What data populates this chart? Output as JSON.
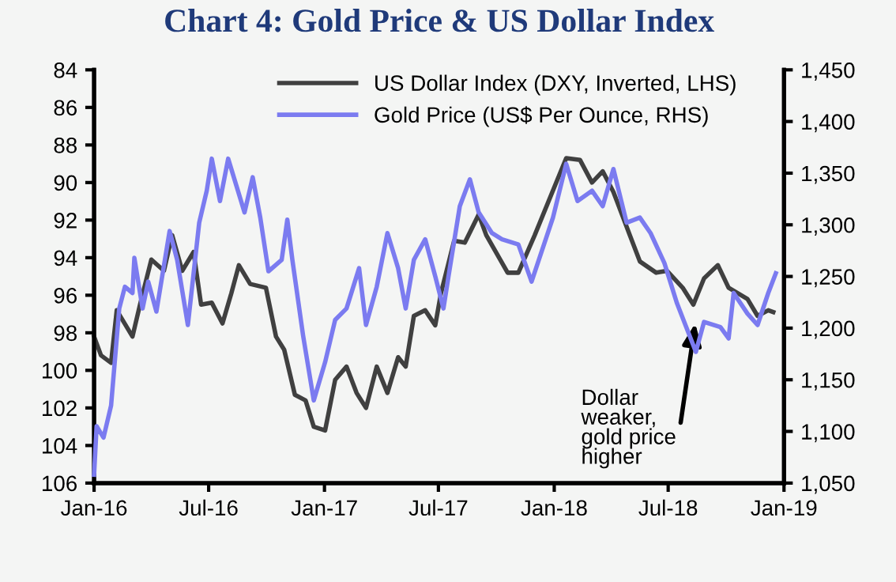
{
  "chart_data": {
    "type": "line",
    "title": "Chart 4: Gold Price & US Dollar Index",
    "xlim": [
      "2016-01-01",
      "2019-01-01"
    ],
    "xticks": [
      {
        "value": "2016-01-01",
        "label": "Jan-16"
      },
      {
        "value": "2016-07-01",
        "label": "Jul-16"
      },
      {
        "value": "2017-01-01",
        "label": "Jan-17"
      },
      {
        "value": "2017-07-01",
        "label": "Jul-17"
      },
      {
        "value": "2018-01-01",
        "label": "Jan-18"
      },
      {
        "value": "2018-07-01",
        "label": "Jul-18"
      },
      {
        "value": "2019-01-01",
        "label": "Jan-19"
      }
    ],
    "ylim": [
      106,
      84
    ],
    "yticks": [
      84,
      86,
      88,
      90,
      92,
      94,
      96,
      98,
      100,
      102,
      104,
      106
    ],
    "y2lim": [
      1050,
      1450
    ],
    "y2ticks": [
      {
        "value": 1050,
        "label": "1,050"
      },
      {
        "value": 1100,
        "label": "1,100"
      },
      {
        "value": 1150,
        "label": "1,150"
      },
      {
        "value": 1200,
        "label": "1,200"
      },
      {
        "value": 1250,
        "label": "1,250"
      },
      {
        "value": 1300,
        "label": "1,300"
      },
      {
        "value": 1350,
        "label": "1,350"
      },
      {
        "value": 1400,
        "label": "1,400"
      },
      {
        "value": 1450,
        "label": "1,450"
      }
    ],
    "grid": false,
    "legend": "top",
    "line_style": "solid",
    "annotations": [
      {
        "text": "Dollar\nweaker,\ngold price\nhigher",
        "x": "2018-08-13",
        "y": 97.5
      }
    ],
    "series": [
      {
        "name": "US Dollar Index (DXY, Inverted, LHS)",
        "color": "#404040",
        "x": [
          "2016-01-01",
          "2016-01-12",
          "2016-01-28",
          "2016-02-06",
          "2016-03-02",
          "2016-03-14",
          "2016-04-01",
          "2016-04-21",
          "2016-05-04",
          "2016-05-20",
          "2016-06-07",
          "2016-06-19",
          "2016-07-06",
          "2016-07-23",
          "2016-08-06",
          "2016-08-18",
          "2016-09-05",
          "2016-09-30",
          "2016-10-16",
          "2016-10-29",
          "2016-11-15",
          "2016-12-02",
          "2016-12-15",
          "2017-01-02",
          "2017-01-18",
          "2017-02-05",
          "2017-02-21",
          "2017-03-08",
          "2017-03-25",
          "2017-04-11",
          "2017-04-28",
          "2017-05-10",
          "2017-05-23",
          "2017-06-10",
          "2017-06-26",
          "2017-07-05",
          "2017-07-26",
          "2017-08-12",
          "2017-09-03",
          "2017-09-15",
          "2017-10-19",
          "2017-11-05",
          "2017-12-01",
          "2018-01-20",
          "2018-02-11",
          "2018-03-02",
          "2018-03-19",
          "2018-04-05",
          "2018-05-01",
          "2018-05-17",
          "2018-06-12",
          "2018-06-29",
          "2018-07-24",
          "2018-08-10",
          "2018-08-27",
          "2018-09-18",
          "2018-10-05",
          "2018-11-04",
          "2018-11-20",
          "2018-12-07",
          "2018-12-15"
        ],
        "values": [
          98.2,
          99.2,
          99.6,
          96.8,
          98.2,
          96.5,
          94.1,
          94.7,
          92.8,
          94.7,
          93.7,
          96.5,
          96.4,
          97.5,
          95.9,
          94.4,
          95.4,
          95.6,
          98.2,
          98.9,
          101.3,
          101.6,
          103.0,
          103.2,
          100.5,
          99.8,
          101.2,
          102.0,
          99.8,
          101.2,
          99.3,
          99.8,
          97.1,
          96.8,
          97.6,
          95.9,
          93.1,
          93.2,
          91.7,
          92.8,
          94.8,
          94.8,
          92.8,
          88.7,
          88.8,
          90.0,
          89.4,
          90.5,
          92.8,
          94.2,
          94.8,
          94.7,
          95.6,
          96.5,
          95.1,
          94.4,
          95.6,
          96.2,
          97.1,
          96.8,
          96.9
        ]
      },
      {
        "name": "Gold Price (US$ Per Ounce, RHS)",
        "color": "#7b7bf0",
        "axis": "y2",
        "x": [
          "2016-01-01",
          "2016-01-05",
          "2016-01-16",
          "2016-01-28",
          "2016-02-10",
          "2016-02-19",
          "2016-03-02",
          "2016-03-05",
          "2016-03-18",
          "2016-03-27",
          "2016-04-09",
          "2016-04-30",
          "2016-05-12",
          "2016-05-29",
          "2016-06-16",
          "2016-06-28",
          "2016-07-06",
          "2016-07-19",
          "2016-08-01",
          "2016-08-14",
          "2016-08-27",
          "2016-09-09",
          "2016-09-21",
          "2016-10-04",
          "2016-10-25",
          "2016-11-03",
          "2016-11-11",
          "2016-11-28",
          "2016-12-15",
          "2017-01-02",
          "2017-01-18",
          "2017-02-05",
          "2017-02-25",
          "2017-03-08",
          "2017-03-25",
          "2017-04-11",
          "2017-04-28",
          "2017-05-10",
          "2017-05-23",
          "2017-06-10",
          "2017-06-26",
          "2017-07-09",
          "2017-07-17",
          "2017-08-04",
          "2017-08-20",
          "2017-09-03",
          "2017-09-24",
          "2017-10-10",
          "2017-11-05",
          "2017-11-26",
          "2017-12-13",
          "2017-12-30",
          "2018-01-20",
          "2018-02-07",
          "2018-03-02",
          "2018-03-19",
          "2018-04-05",
          "2018-04-26",
          "2018-05-17",
          "2018-06-03",
          "2018-06-25",
          "2018-07-15",
          "2018-08-14",
          "2018-08-27",
          "2018-09-22",
          "2018-10-05",
          "2018-10-13",
          "2018-11-04",
          "2018-11-20",
          "2018-12-07",
          "2018-12-19"
        ],
        "values": [
          1058,
          1105,
          1094,
          1125,
          1219,
          1240,
          1234,
          1268,
          1219,
          1245,
          1216,
          1294,
          1266,
          1203,
          1302,
          1333,
          1364,
          1323,
          1364,
          1338,
          1312,
          1346,
          1307,
          1255,
          1266,
          1305,
          1266,
          1193,
          1130,
          1167,
          1208,
          1219,
          1258,
          1203,
          1240,
          1292,
          1258,
          1219,
          1266,
          1286,
          1250,
          1219,
          1250,
          1318,
          1344,
          1312,
          1292,
          1286,
          1281,
          1245,
          1276,
          1307,
          1359,
          1323,
          1333,
          1318,
          1354,
          1302,
          1307,
          1292,
          1263,
          1224,
          1177,
          1206,
          1201,
          1190,
          1234,
          1214,
          1203,
          1234,
          1253
        ]
      }
    ]
  }
}
